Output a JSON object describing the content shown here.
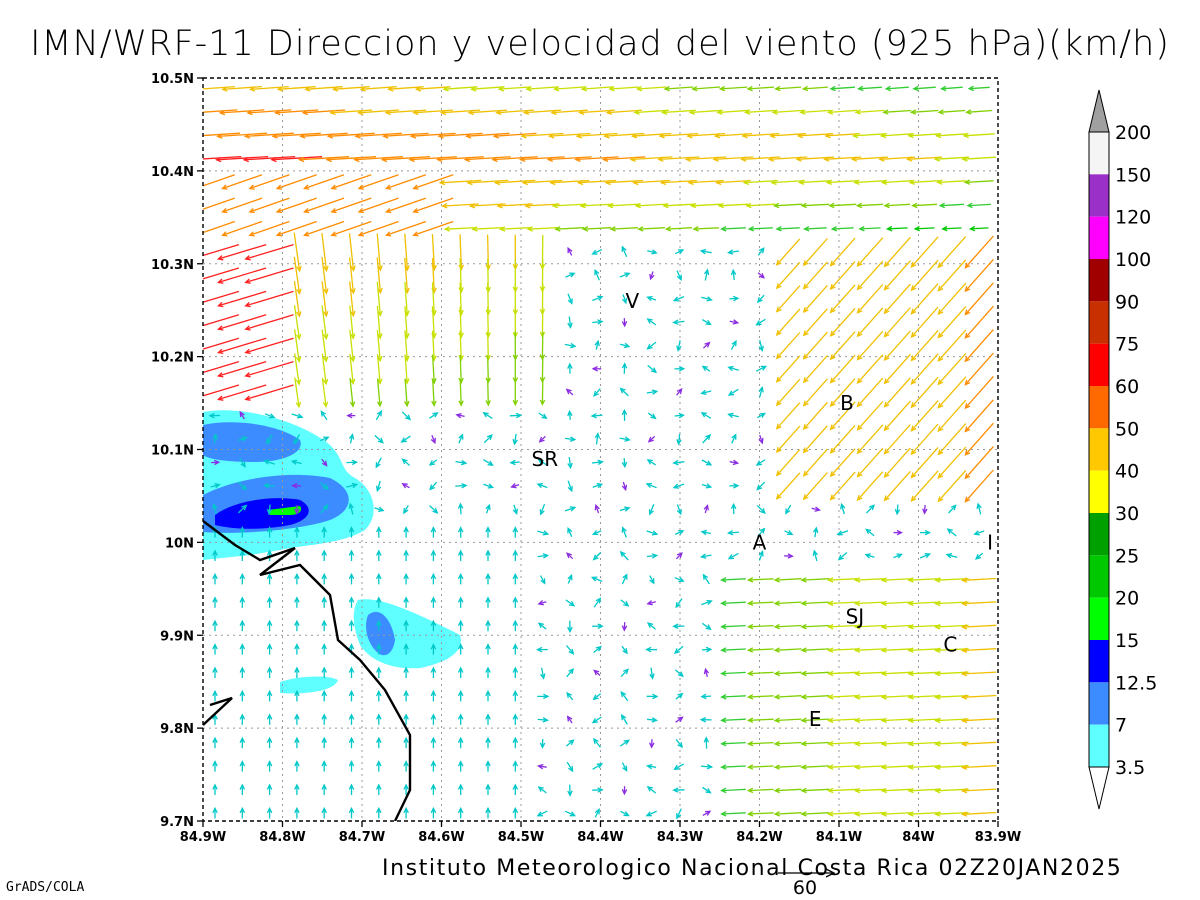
{
  "title": "IMN/WRF-11 Direccion y velocidad del viento (925 hPa)(km/h)",
  "footer": "Instituto Meteorologico Nacional Costa Rica 02Z20JAN2025",
  "credit": "GrADS/COLA",
  "reference_vector": {
    "label": "60",
    "value_kmh": 60
  },
  "map": {
    "lat_range": [
      9.7,
      10.5
    ],
    "lon_range_west": [
      84.9,
      83.9
    ],
    "y_axis_labels": [
      "10.5N",
      "10.4N",
      "10.3N",
      "10.2N",
      "10.1N",
      "10N",
      "9.9N",
      "9.8N",
      "9.7N"
    ],
    "x_axis_labels": [
      "84.9W",
      "84.8W",
      "84.7W",
      "84.6W",
      "84.5W",
      "84.4W",
      "84.3W",
      "84.2W",
      "84.1W",
      "84W",
      "83.9W"
    ],
    "grid": "dotted",
    "cities": [
      {
        "label": "V",
        "lat": 10.26,
        "lon_w": 84.36
      },
      {
        "label": "SR",
        "lat": 10.09,
        "lon_w": 84.47
      },
      {
        "label": "B",
        "lat": 10.15,
        "lon_w": 84.09
      },
      {
        "label": "A",
        "lat": 10.0,
        "lon_w": 84.2
      },
      {
        "label": "I",
        "lat": 10.0,
        "lon_w": 83.91
      },
      {
        "label": "SJ",
        "lat": 9.92,
        "lon_w": 84.08
      },
      {
        "label": "C",
        "lat": 9.89,
        "lon_w": 83.96
      },
      {
        "label": "E",
        "lat": 9.81,
        "lon_w": 84.13
      }
    ]
  },
  "colorbar": {
    "labels": [
      "200",
      "150",
      "120",
      "100",
      "90",
      "75",
      "60",
      "50",
      "40",
      "30",
      "25",
      "20",
      "15",
      "12.5",
      "7",
      "3.5"
    ],
    "colors": [
      "#a0a0a0",
      "#f5f5f5",
      "#9b30c8",
      "#ff00ff",
      "#a00000",
      "#c83000",
      "#ff0000",
      "#ff6a00",
      "#ffc800",
      "#ffff00",
      "#00a000",
      "#00c800",
      "#00ff00",
      "#0000ff",
      "#3c8cff",
      "#5fffff",
      "#ffffff"
    ]
  },
  "speed_colors": {
    "3.5": "#00c8c8",
    "7": "#00aaff",
    "12.5": "#3c50ff",
    "low": "#8a2be2",
    "15": "#00c800",
    "20": "#32cd32",
    "25": "#80d000",
    "30": "#c8e000",
    "40": "#f0c000",
    "50": "#ff8c00",
    "60": "#ff2020"
  }
}
